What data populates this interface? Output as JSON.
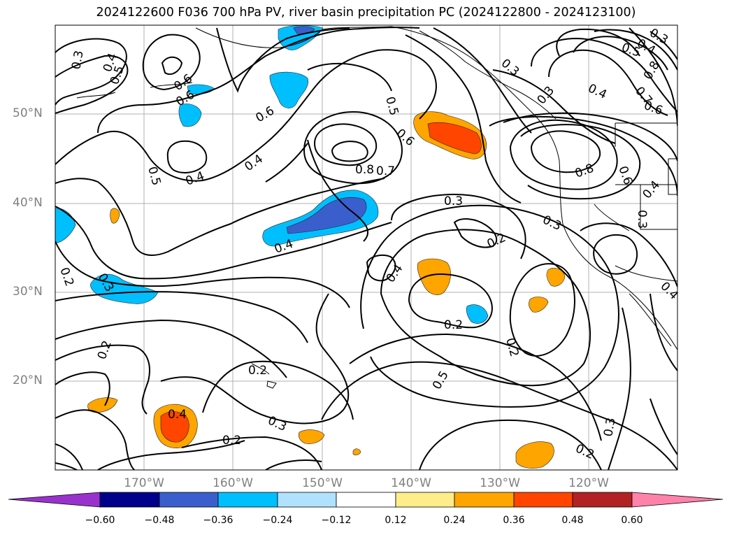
{
  "title": "2024122600 F036 700 hPa PV, river basin precipitation PC (2024122800 - 2024123100)",
  "axes": {
    "lat_labels": [
      "50°N",
      "40°N",
      "30°N",
      "20°N"
    ],
    "lon_labels": [
      "170°W",
      "160°W",
      "150°W",
      "140°W",
      "130°W",
      "120°W"
    ]
  },
  "colorbar": {
    "ticks": [
      "−0.60",
      "−0.48",
      "−0.36",
      "−0.24",
      "−0.12",
      "0.12",
      "0.24",
      "0.36",
      "0.48",
      "0.60"
    ],
    "colors": [
      "#9932CC",
      "#00008B",
      "#3A5FCD",
      "#00BFFF",
      "#B0E2FF",
      "#FFFFFF",
      "#FFEC8B",
      "#FFA500",
      "#FF4500",
      "#B22222",
      "#FF82AB"
    ],
    "extend": "both"
  },
  "contour_labels": [
    "0.3",
    "0.4",
    "0.5",
    "0.6",
    "0.6",
    "0.4",
    "0.5",
    "0.4",
    "0.6",
    "0.5",
    "0.6",
    "0.8",
    "0.7",
    "0.3",
    "0.3",
    "0.3",
    "0.4",
    "0.5",
    "0.8",
    "0.4",
    "0.7",
    "0.6",
    "0.8",
    "0.6",
    "0.4",
    "0.3",
    "0.3",
    "0.2",
    "0.4",
    "0.3",
    "0.4",
    "0.2",
    "0.3",
    "0.2",
    "0.2",
    "0.2",
    "0.2",
    "0.3",
    "0.4",
    "0.2",
    "0.5",
    "0.2",
    "0.3",
    "0.4"
  ]
}
